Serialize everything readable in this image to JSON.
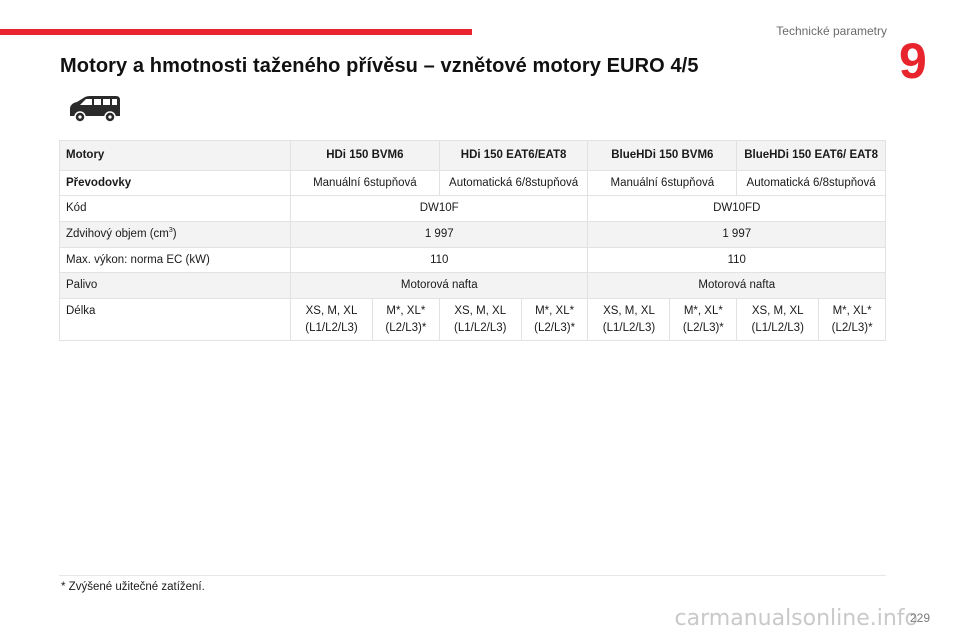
{
  "header": {
    "section_label": "Technické parametry",
    "chapter_number": "9",
    "accent_color": "#e8242c"
  },
  "page_title": "Motory a hmotnosti taženého přívěsu – vznětové motory EURO 4/5",
  "vehicle_icon": "van-icon",
  "table": {
    "header_row": {
      "label": "Motory",
      "engines": [
        "HDi 150 BVM6",
        "HDi 150 EAT6/EAT8",
        "BlueHDi 150 BVM6",
        "BlueHDi 150 EAT6/ EAT8"
      ]
    },
    "transmission_row": {
      "label": "Převodovky",
      "values": [
        "Manuální 6stupňová",
        "Automatická 6/8stupňová",
        "Manuální 6stupňová",
        "Automatická 6/8stupňová"
      ]
    },
    "code_row": {
      "label": "Kód",
      "values": [
        "DW10F",
        "DW10FD"
      ]
    },
    "displacement_row": {
      "label": "Zdvihový objem (cm",
      "unit_sup": "3",
      "label_end": ")",
      "values": [
        "1 997",
        "1 997"
      ]
    },
    "power_row": {
      "label": "Max. výkon: norma EC (kW)",
      "values": [
        "110",
        "110"
      ]
    },
    "fuel_row": {
      "label": "Palivo",
      "values": [
        "Motorová nafta",
        "Motorová nafta"
      ]
    },
    "length_row": {
      "label": "Délka",
      "values": [
        "XS, M, XL (L1/L2/L3)",
        "M*, XL* (L2/L3)*",
        "XS, M, XL (L1/L2/L3)",
        "M*, XL* (L2/L3)*",
        "XS, M, XL (L1/L2/L3)",
        "M*, XL* (L2/L3)*",
        "XS, M, XL (L1/L2/L3)",
        "M*, XL* (L2/L3)*"
      ]
    }
  },
  "footnote": "*  Zvýšené užitečné zatížení.",
  "page_number": "229",
  "watermark": "carmanualsonline.info"
}
